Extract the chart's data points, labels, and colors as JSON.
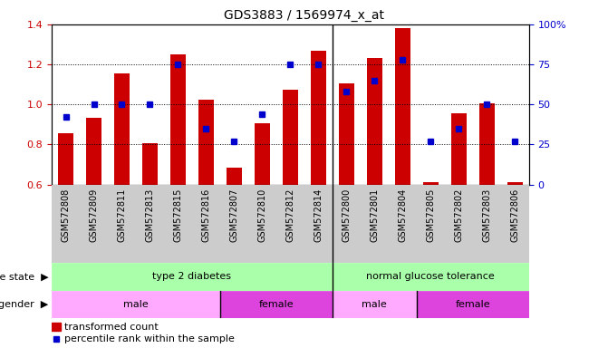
{
  "title": "GDS3883 / 1569974_x_at",
  "samples": [
    "GSM572808",
    "GSM572809",
    "GSM572811",
    "GSM572813",
    "GSM572815",
    "GSM572816",
    "GSM572807",
    "GSM572810",
    "GSM572812",
    "GSM572814",
    "GSM572800",
    "GSM572801",
    "GSM572804",
    "GSM572805",
    "GSM572802",
    "GSM572803",
    "GSM572806"
  ],
  "bar_values": [
    0.857,
    0.935,
    1.155,
    0.808,
    1.248,
    1.025,
    0.685,
    0.907,
    1.072,
    1.268,
    1.105,
    1.232,
    1.382,
    0.612,
    0.956,
    1.005,
    0.612
  ],
  "dot_pct": [
    0.42,
    0.5,
    0.5,
    0.5,
    0.75,
    0.35,
    0.27,
    0.44,
    0.75,
    0.75,
    0.58,
    0.65,
    0.78,
    0.27,
    0.35,
    0.5,
    0.27
  ],
  "bar_color": "#cc0000",
  "dot_color": "#0000cc",
  "ylim": [
    0.6,
    1.4
  ],
  "yticks": [
    0.6,
    0.8,
    1.0,
    1.2,
    1.4
  ],
  "right_yticks": [
    0,
    25,
    50,
    75,
    100
  ],
  "right_ytick_labels": [
    "0",
    "25",
    "50",
    "75",
    "100%"
  ],
  "disease_divider_idx": 10,
  "gender_dividers": [
    6,
    10,
    13
  ],
  "disease_groups": [
    {
      "label": "type 2 diabetes",
      "start": 0,
      "end": 10
    },
    {
      "label": "normal glucose tolerance",
      "start": 10,
      "end": 17
    }
  ],
  "gender_groups": [
    {
      "label": "male",
      "start": 0,
      "end": 6
    },
    {
      "label": "female",
      "start": 6,
      "end": 10
    },
    {
      "label": "male",
      "start": 10,
      "end": 13
    },
    {
      "label": "female",
      "start": 13,
      "end": 17
    }
  ],
  "male_color": "#ffaaff",
  "female_color": "#dd44dd",
  "disease_color": "#aaffaa",
  "legend_bar_label": "transformed count",
  "legend_dot_label": "percentile rank within the sample",
  "disease_state_label": "disease state",
  "gender_label": "gender",
  "bg_xtick_color": "#cccccc",
  "title_fontsize": 10,
  "axis_fontsize": 8,
  "xtick_fontsize": 7
}
